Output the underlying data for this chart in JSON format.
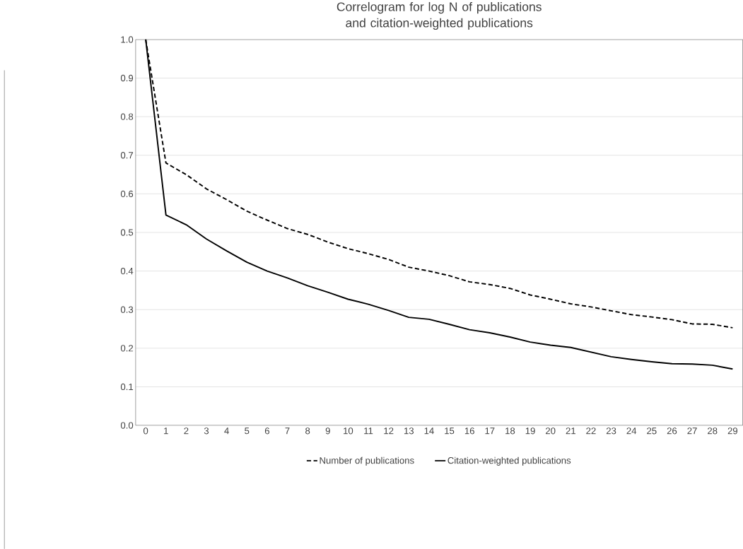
{
  "chart_data": {
    "type": "line",
    "title": "Correlogram for log N of publications and citation-weighted publications",
    "categories": [
      "0",
      "1",
      "2",
      "3",
      "4",
      "5",
      "6",
      "7",
      "8",
      "9",
      "10",
      "11",
      "12",
      "13",
      "14",
      "15",
      "16",
      "17",
      "18",
      "19",
      "20",
      "21",
      "22",
      "23",
      "24",
      "25",
      "26",
      "27",
      "28",
      "29"
    ],
    "ylim": [
      0,
      1
    ],
    "yticks": [
      {
        "value": 0,
        "label": "0.0"
      },
      {
        "value": 0.1,
        "label": "0.1"
      },
      {
        "value": 0.2,
        "label": "0.2"
      },
      {
        "value": 0.3,
        "label": "0.3"
      },
      {
        "value": 0.4,
        "label": "0.4"
      },
      {
        "value": 0.5,
        "label": "0.5"
      },
      {
        "value": 0.6,
        "label": "0.6"
      },
      {
        "value": 0.7,
        "label": "0.7"
      },
      {
        "value": 0.8,
        "label": "0.8"
      },
      {
        "value": 0.9,
        "label": "0.9"
      },
      {
        "value": 1,
        "label": "1.0"
      }
    ],
    "grid": "y",
    "legend": "bottom",
    "marker": "none",
    "series": [
      {
        "name": "Number of publications",
        "color": "#000000",
        "line_style": "dashed",
        "values": [
          1.0,
          0.68,
          0.65,
          0.613,
          0.585,
          0.555,
          0.532,
          0.51,
          0.495,
          0.475,
          0.458,
          0.445,
          0.43,
          0.41,
          0.4,
          0.388,
          0.372,
          0.365,
          0.355,
          0.338,
          0.327,
          0.315,
          0.307,
          0.297,
          0.287,
          0.281,
          0.274,
          0.263,
          0.262,
          0.253
        ]
      },
      {
        "name": "Citation-weighted publications",
        "color": "#000000",
        "line_style": "solid",
        "values": [
          1.0,
          0.545,
          0.52,
          0.483,
          0.452,
          0.423,
          0.4,
          0.382,
          0.362,
          0.345,
          0.327,
          0.314,
          0.298,
          0.28,
          0.275,
          0.262,
          0.248,
          0.24,
          0.229,
          0.216,
          0.208,
          0.202,
          0.19,
          0.178,
          0.171,
          0.165,
          0.16,
          0.159,
          0.156,
          0.146
        ]
      }
    ]
  }
}
